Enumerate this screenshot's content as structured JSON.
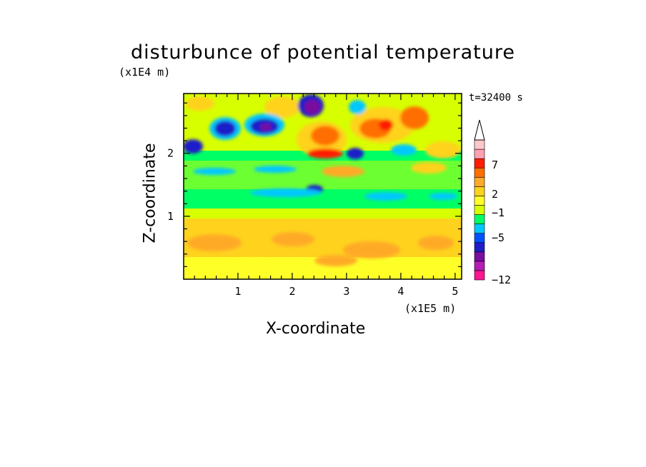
{
  "chart_data": {
    "type": "heatmap",
    "title": "disturbunce of potential temperature",
    "xlabel": "X-coordinate",
    "ylabel": "Z-coordinate",
    "x_multiplier": "(x1E5 m)",
    "y_multiplier": "(x1E4 m)",
    "time_label": "t=32400 s",
    "xlim": [
      0,
      5.12
    ],
    "ylim": [
      0,
      2.95
    ],
    "x_ticks": [
      "1",
      "2",
      "3",
      "4",
      "5"
    ],
    "y_ticks": [
      "1",
      "2"
    ],
    "colorbar": {
      "labels": [
        "7",
        "2",
        "−1",
        "−5",
        "−12"
      ],
      "colors": [
        "#ff1493",
        "#b41cb4",
        "#7a0ea0",
        "#1e1ec8",
        "#0050ff",
        "#00c8ff",
        "#00ff64",
        "#d7ff00",
        "#ffff28",
        "#ffd21e",
        "#ffaa28",
        "#ff6e00",
        "#ff1e00",
        "#ffa0b4",
        "#ffc8c8"
      ],
      "extend": "max"
    },
    "features": [
      {
        "x": 0.55,
        "z": 2.3,
        "value": -6
      },
      {
        "x": 1.45,
        "z": 2.4,
        "value": -8
      },
      {
        "x": 2.3,
        "z": 2.65,
        "value": -9
      },
      {
        "x": 2.55,
        "z": 2.15,
        "value": 6
      },
      {
        "x": 3.15,
        "z": 2.45,
        "value": 5
      },
      {
        "x": 3.6,
        "z": 2.55,
        "value": 7
      },
      {
        "x": 3.0,
        "z": 1.9,
        "value": -6
      },
      {
        "x": 1.0,
        "z": 0.6,
        "value": 3
      },
      {
        "x": 3.5,
        "z": 0.5,
        "value": 3
      }
    ]
  }
}
